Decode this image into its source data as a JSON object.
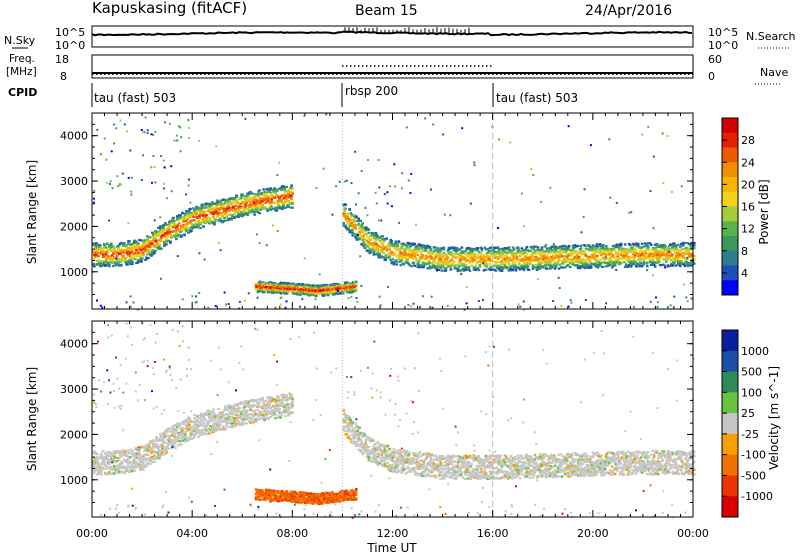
{
  "header": {
    "title": "Kapuskasing (fitACF)",
    "beam": "Beam 15",
    "date": "24/Apr/2016"
  },
  "strips": {
    "nsky_label": "N.Sky",
    "nsky_ticks": [
      "10^5",
      "10^0"
    ],
    "nsearch_label": "N.Search",
    "freq_label_1": "Freq.",
    "freq_label_2": "[MHz]",
    "freq_ticks": [
      "18",
      "8"
    ],
    "nave_label": "Nave",
    "nave_ticks": [
      "60",
      "0"
    ],
    "cpid_label": "CPID",
    "cpid_segments": [
      {
        "label": "tau (fast) 503",
        "start_hour": 0,
        "end_hour": 10
      },
      {
        "label": "rbsp 200",
        "start_hour": 10,
        "end_hour": 16
      },
      {
        "label": "tau (fast) 503",
        "start_hour": 16,
        "end_hour": 24
      }
    ]
  },
  "chart_data": [
    {
      "type": "heatmap",
      "panel": "power",
      "xlabel": "",
      "ylabel": "Slant Range [km]",
      "x": {
        "unit": "hour UT",
        "range": [
          0,
          24
        ]
      },
      "ylim": [
        180,
        4500
      ],
      "yticks": [
        1000,
        2000,
        3000,
        4000
      ],
      "colorbar": {
        "label": "Power [dB]",
        "ticks": [
          "28",
          "24",
          "20",
          "16",
          "12",
          "8",
          "4"
        ],
        "colors": [
          "#0000ff",
          "#1e4fb8",
          "#2e7d8a",
          "#3a9a5a",
          "#59b34a",
          "#a6cc3a",
          "#f2d21b",
          "#f5b400",
          "#f28c00",
          "#ee5a00",
          "#e32000",
          "#d00000"
        ]
      },
      "features": [
        {
          "name": "main echo band",
          "points": [
            [
              0.0,
              1400
            ],
            [
              1.0,
              1400
            ],
            [
              2.0,
              1500
            ],
            [
              3.0,
              1900
            ],
            [
              4.0,
              2200
            ],
            [
              6.0,
              2500
            ],
            [
              7.0,
              2600
            ],
            [
              8.0,
              2700
            ]
          ],
          "peak_db": 26
        },
        {
          "name": "afternoon band",
          "points": [
            [
              10.0,
              2300
            ],
            [
              11.0,
              1700
            ],
            [
              12.0,
              1450
            ],
            [
              14.0,
              1300
            ],
            [
              16.0,
              1300
            ],
            [
              18.0,
              1330
            ],
            [
              20.0,
              1370
            ],
            [
              22.0,
              1400
            ],
            [
              24.0,
              1400
            ]
          ],
          "peak_db": 22
        },
        {
          "name": "near-range echo",
          "points": [
            [
              6.5,
              700
            ],
            [
              8.0,
              650
            ],
            [
              9.0,
              600
            ],
            [
              10.5,
              700
            ]
          ],
          "peak_db": 28
        }
      ]
    },
    {
      "type": "heatmap",
      "panel": "velocity",
      "xlabel": "Time UT",
      "ylabel": "Slant Range [km]",
      "x": {
        "unit": "hour UT",
        "range": [
          0,
          24
        ]
      },
      "xticks": [
        "00:00",
        "04:00",
        "08:00",
        "12:00",
        "16:00",
        "20:00",
        "00:00"
      ],
      "ylim": [
        180,
        4500
      ],
      "yticks": [
        1000,
        2000,
        3000,
        4000
      ],
      "colorbar": {
        "label": "Velocity [m s^-1]",
        "ticks": [
          "1000",
          "500",
          "100",
          "25",
          "-25",
          "-100",
          "-500",
          "-1000"
        ],
        "colors": [
          "#d80000",
          "#ef3300",
          "#f27000",
          "#f5a000",
          "#c6c6c6",
          "#66c33f",
          "#2e8b57",
          "#1c4fa8",
          "#0a1ea0"
        ]
      },
      "features": [
        {
          "name": "ground scatter band",
          "velocity": 0
        },
        {
          "name": "near-range flow",
          "velocity": -200
        }
      ]
    }
  ]
}
